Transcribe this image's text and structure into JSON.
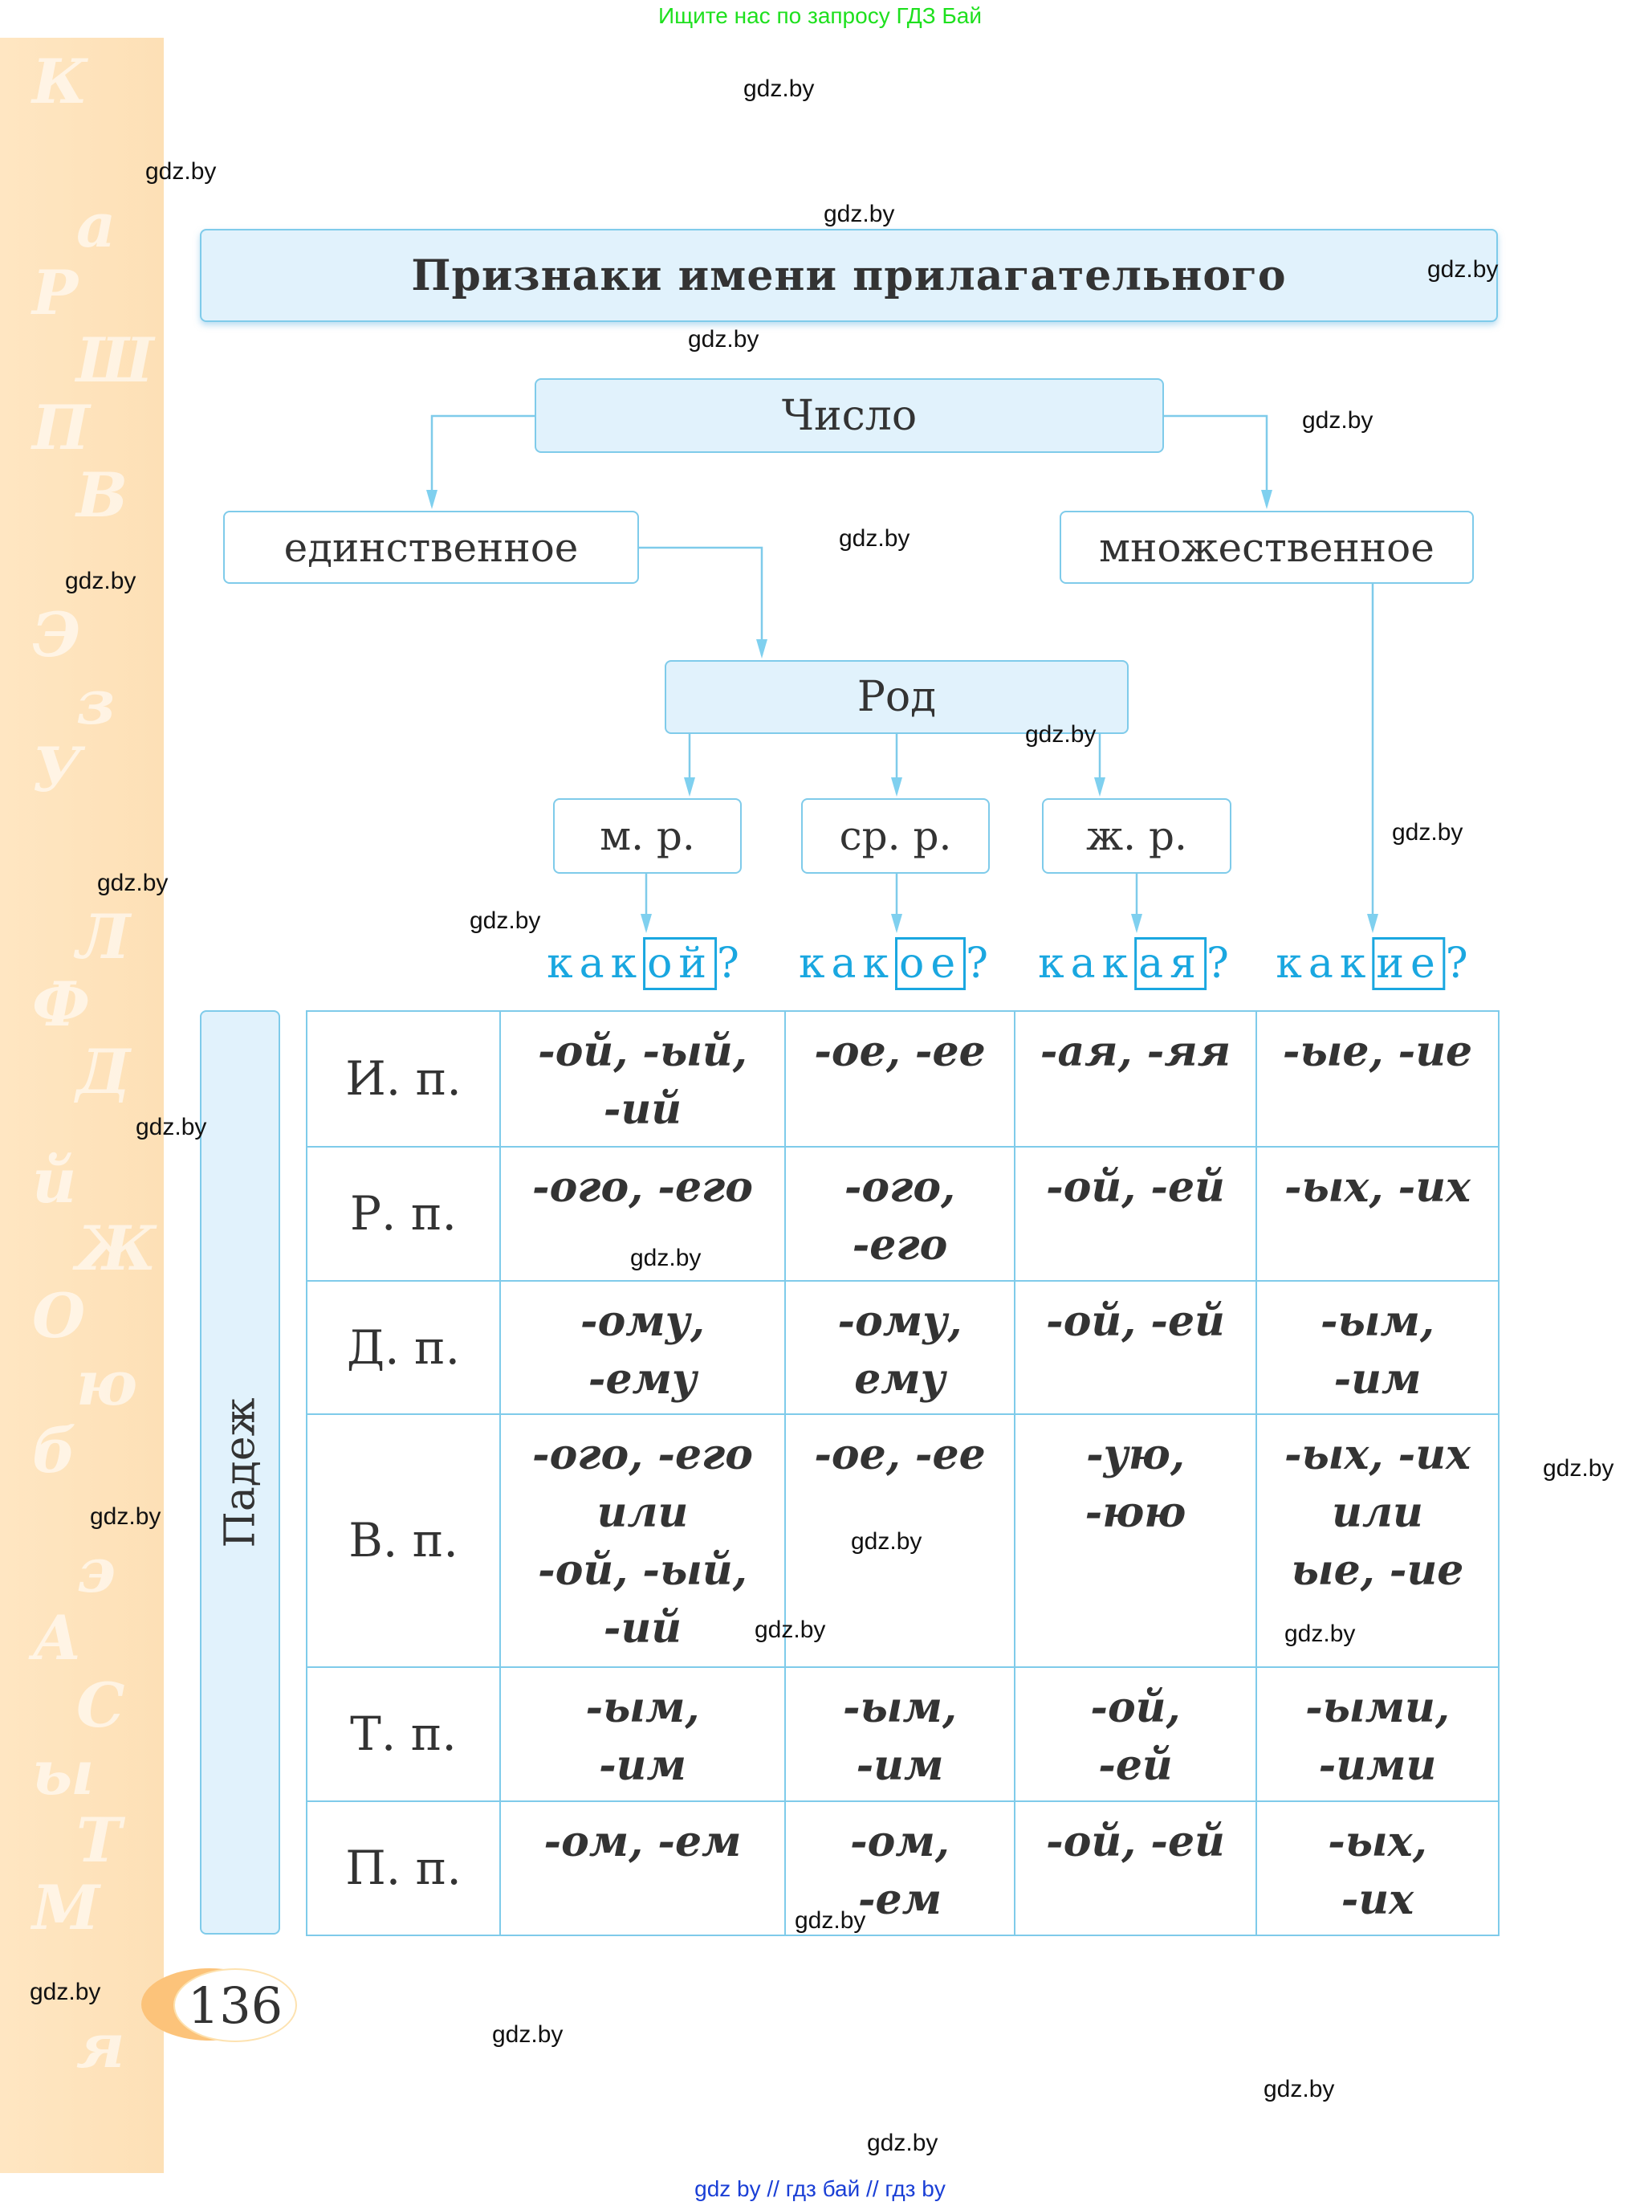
{
  "top_banner": "Ищите нас по запросу ГДЗ Бай",
  "title": "Признаки имени прилагательного",
  "number_label": "Число",
  "singular": "единственное",
  "plural": "множественное",
  "gender_label": "Род",
  "genders": [
    "м. р.",
    "ср. р.",
    "ж. р."
  ],
  "questions": [
    {
      "stem": "как",
      "ending": "ой",
      "mark": "?"
    },
    {
      "stem": "как",
      "ending": "ое",
      "mark": "?"
    },
    {
      "stem": "как",
      "ending": "ая",
      "mark": "?"
    },
    {
      "stem": "как",
      "ending": "ие",
      "mark": "?"
    }
  ],
  "case_label": "Падеж",
  "table": [
    {
      "label": "И. п.",
      "cells": [
        "-ой, -ый,\n-ий",
        "-ое, -ее",
        "-ая, -яя",
        "-ые, -ие"
      ]
    },
    {
      "label": "Р. п.",
      "cells": [
        "-ого, -его",
        "-ого,\n-его",
        "-ой, -ей",
        "-ых, -их"
      ]
    },
    {
      "label": "Д. п.",
      "cells": [
        "-ому,\n-ему",
        "-ому,\nему",
        "-ой, -ей",
        "-ым,\n-им"
      ]
    },
    {
      "label": "В. п.",
      "cells": [
        "-ого, -его\nили\n-ой, -ый,\n-ий",
        "-ое, -ее",
        "-ую,\n-юю",
        "-ых, -их\nили\nые, -ие"
      ]
    },
    {
      "label": "Т. п.",
      "cells": [
        "-ым,\n-им",
        "-ым,\n-им",
        "-ой,\n-ей",
        "-ыми,\n-ими"
      ]
    },
    {
      "label": "П. п.",
      "cells": [
        "-ом, -ем",
        "-ом,\n-ем",
        "-ой, -ей",
        "-ых,\n-их"
      ]
    }
  ],
  "page_number": "136",
  "sidebar_letters": "КаРШПВЭзУЛФДйЖОюбэАСыТМя",
  "watermarks": [
    "gdz.by",
    "gdz.by",
    "gdz.by",
    "gdz.by",
    "gdz.by",
    "gdz.by",
    "gdz.by",
    "gdz.by",
    "gdz.by",
    "gdz.by",
    "gdz.by",
    "gdz.by",
    "gdz.by",
    "gdz.by",
    "gdz.by",
    "gdz.by",
    "gdz.by",
    "gdz.by",
    "gdz.by",
    "gdz.by",
    "gdz.by",
    "gdz.by",
    "gdz.by",
    "gdz.by"
  ],
  "footer": "gdz by  //  гдз бай  //  гдз by",
  "colors": {
    "accent": "#1aa7e0",
    "box_fill": "#e1f2fc",
    "border": "#7fcbea",
    "sidebar": "#fde0b6"
  }
}
